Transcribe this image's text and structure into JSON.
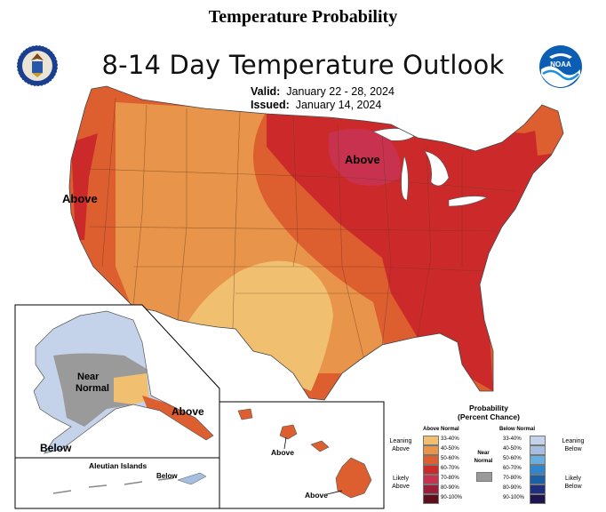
{
  "page_title": "Temperature Probability",
  "map_title": "8-14 Day Temperature Outlook",
  "valid_label": "Valid:",
  "valid_value": "January 22 - 28, 2024",
  "issued_label": "Issued:",
  "issued_value": "January 14, 2024",
  "logos": {
    "left": "department-of-commerce-seal",
    "right": "noaa-logo",
    "noaa_text": "NOAA"
  },
  "map_labels": {
    "above_west": "Above",
    "above_great_lakes": "Above",
    "alaska_near_normal_line1": "Near",
    "alaska_near_normal_line2": "Normal",
    "alaska_above": "Above",
    "alaska_below": "Below",
    "aleutian_title": "Aleutian Islands",
    "aleutian_below": "Below",
    "hawaii_above_1": "Above",
    "hawaii_above_2": "Above"
  },
  "legend": {
    "title_line1": "Probability",
    "title_line2": "(Percent Chance)",
    "above_header": "Above Normal",
    "below_header": "Below Normal",
    "near_header_line1": "Near",
    "near_header_line2": "Normal",
    "leaning_above_line1": "Leaning",
    "leaning_above_line2": "Above",
    "likely_above_line1": "Likely",
    "likely_above_line2": "Above",
    "leaning_below_line1": "Leaning",
    "leaning_below_line2": "Below",
    "likely_below_line1": "Likely",
    "likely_below_line2": "Below",
    "categories": [
      "33-40%",
      "40-50%",
      "50-60%",
      "60-70%",
      "70-80%",
      "80-90%",
      "90-100%"
    ],
    "above_colors": [
      "#f0c070",
      "#e8944a",
      "#dd5e2f",
      "#cc2a2a",
      "#c8324e",
      "#9b1d3a",
      "#5e0f1c"
    ],
    "below_colors": [
      "#c5d3ea",
      "#a6bfe0",
      "#6aaee0",
      "#2f86cf",
      "#1a5fa8",
      "#1f2f7f",
      "#1d1450"
    ],
    "near_color": "#9a9a9a"
  }
}
